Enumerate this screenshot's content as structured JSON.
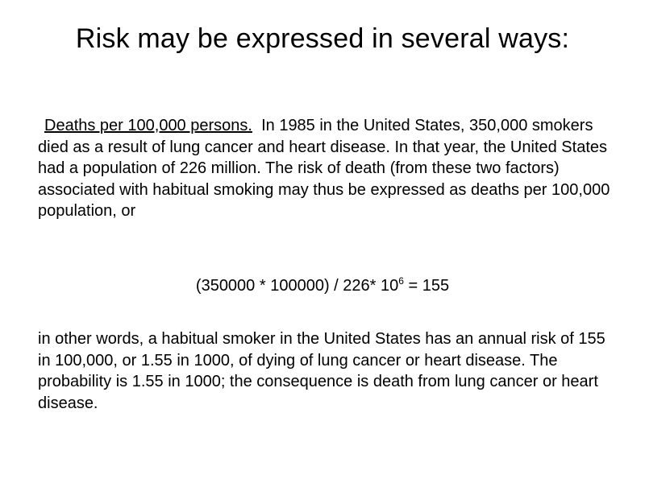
{
  "slide": {
    "title": "Risk may be expressed in several ways:",
    "paragraph1": {
      "lead": "Deaths per 100,000 persons.",
      "text": "In 1985 in the United States, 350,000 smokers died as a result of lung cancer and heart disease. In that year, the United States had a population of 226 million. The risk of death (from these two factors) associated with habitual smoking may thus be expressed as deaths per 100,000 population, or"
    },
    "formula": {
      "main": "(350000 * 100000) / 226* 10",
      "exponent": "6",
      "result": " = 155"
    },
    "paragraph2": "in other words, a habitual smoker in the United States has an annual risk of 155 in 100,000, or 1.55 in 1000, of dying of lung cancer or heart disease. The probability is 1.55 in 1000; the consequence is death from lung cancer or heart disease."
  }
}
